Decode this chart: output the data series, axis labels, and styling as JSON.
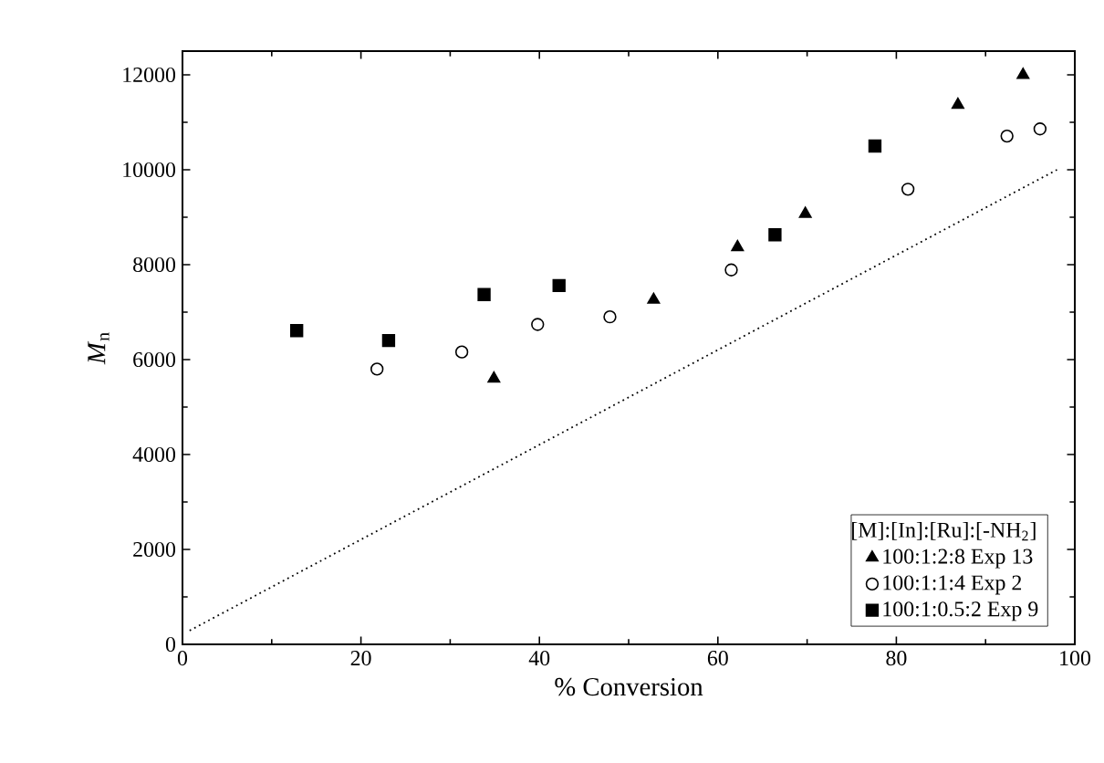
{
  "chart_data": {
    "type": "scatter",
    "xlabel": "% Conversion",
    "ylabel": "*M*$_{n}$",
    "legend_title": "[M]:[In]:[Ru]:[-NH$_{2}$]",
    "legend": "bottom right",
    "xlim": [
      0,
      100
    ],
    "ylim": [
      0,
      12500
    ],
    "xticks": [
      0,
      20,
      40,
      60,
      80,
      100
    ],
    "yticks": [
      0,
      2000,
      4000,
      6000,
      8000,
      10000,
      12000
    ],
    "series": [
      {
        "name": "100:1:2:8 Exp 13",
        "color": "#000000",
        "marker": "triangle",
        "x": [
          34.9,
          52.8,
          62.2,
          69.8,
          86.9,
          94.2
        ],
        "values": [
          5600,
          7260,
          8370,
          9070,
          11370,
          12000
        ]
      },
      {
        "name": "100:1:1:4 Exp 2",
        "color": "#000000",
        "marker": "circle",
        "x": [
          21.8,
          31.3,
          39.8,
          47.9,
          61.5,
          81.3,
          92.4,
          96.1
        ],
        "values": [
          5800,
          6160,
          6740,
          6900,
          7890,
          9590,
          10710,
          10860
        ]
      },
      {
        "name": "100:1:0.5:2 Exp 9",
        "color": "#000000",
        "marker": "square",
        "x": [
          12.8,
          23.1,
          33.8,
          42.2,
          66.4,
          77.6
        ],
        "values": [
          6610,
          6400,
          7370,
          7560,
          8630,
          10500
        ]
      },
      {
        "type": "line",
        "color": "#000000",
        "line_style": "dotted",
        "marker": "none",
        "x": [
          0.8,
          98
        ],
        "values": [
          290,
          10000
        ]
      }
    ]
  }
}
